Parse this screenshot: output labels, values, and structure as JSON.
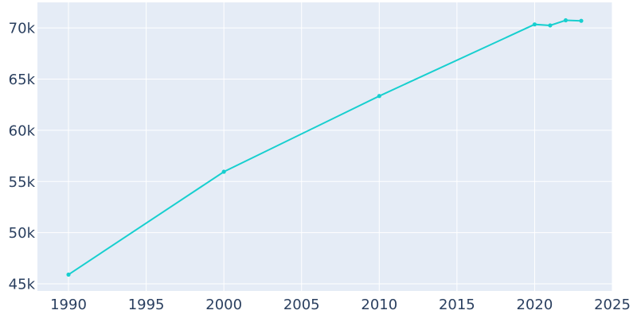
{
  "chart_data": {
    "type": "line",
    "title": "",
    "xlabel": "",
    "ylabel": "",
    "xlim": [
      1988,
      2025
    ],
    "ylim": [
      44300,
      72500
    ],
    "x_ticks": [
      1990,
      1995,
      2000,
      2005,
      2010,
      2015,
      2020,
      2025
    ],
    "x_tick_labels": [
      "1990",
      "1995",
      "2000",
      "2005",
      "2010",
      "2015",
      "2020",
      "2025"
    ],
    "y_ticks": [
      45000,
      50000,
      55000,
      60000,
      65000,
      70000
    ],
    "y_tick_labels": [
      "45k",
      "50k",
      "55k",
      "60k",
      "65k",
      "70k"
    ],
    "grid": true,
    "legend": "none",
    "series": [
      {
        "color": "#17cfcf",
        "x": [
          1990,
          2000,
          2010,
          2020,
          2021,
          2022,
          2023
        ],
        "values": [
          45900,
          55950,
          63350,
          70350,
          70250,
          70750,
          70700
        ]
      }
    ],
    "colors": {
      "plot_background": "#e5ecf6",
      "grid": "#ffffff",
      "text": "#2a3f5f"
    }
  }
}
